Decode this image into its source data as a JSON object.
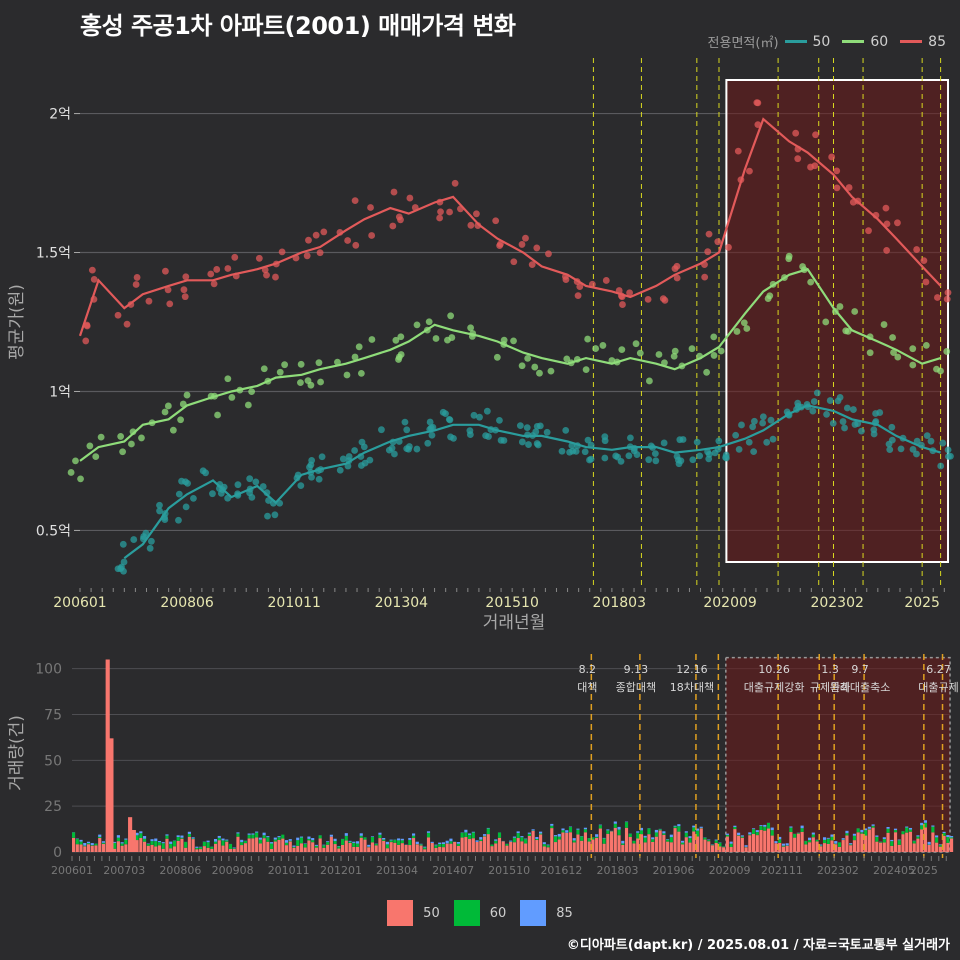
{
  "title": "홍성 주공1차 아파트(2001) 매매가격 변화",
  "legend_title": "전용면적(㎡)",
  "series_colors": {
    "50": "#2a9d9d",
    "60": "#8fdc7a",
    "85": "#e25a5a"
  },
  "bar_colors": {
    "50": "#f8766d",
    "60": "#00ba38",
    "85": "#619cff"
  },
  "credit": "©디아파트(dapt.kr) / 2025.08.01 / 자료=국토교통부 실거래가",
  "chart_data": [
    {
      "type": "line",
      "title": "홍성 주공1차 아파트(2001) 매매가격 변화",
      "xlabel": "거래년월",
      "ylabel": "평균가(원)",
      "x_ticks": [
        "200601",
        "200806",
        "201011",
        "201304",
        "201510",
        "201803",
        "202009",
        "202302",
        "2025"
      ],
      "y_ticks": [
        "0.5억",
        "1억",
        "1.5억",
        "2억"
      ],
      "y_tick_values": [
        0.5,
        1.0,
        1.5,
        2.0
      ],
      "ylim": [
        0.3,
        2.2
      ],
      "xlim": [
        "2006-01",
        "2025-08"
      ],
      "legend_position": "top-right",
      "series": [
        {
          "name": "50",
          "points": [
            [
              "2007-01",
              0.4
            ],
            [
              "2007-06",
              0.45
            ],
            [
              "2008-01",
              0.58
            ],
            [
              "2008-06",
              0.63
            ],
            [
              "2009-01",
              0.68
            ],
            [
              "2009-06",
              0.62
            ],
            [
              "2010-01",
              0.66
            ],
            [
              "2010-06",
              0.6
            ],
            [
              "2011-01",
              0.7
            ],
            [
              "2011-06",
              0.72
            ],
            [
              "2012-01",
              0.74
            ],
            [
              "2012-06",
              0.78
            ],
            [
              "2013-01",
              0.82
            ],
            [
              "2013-06",
              0.84
            ],
            [
              "2014-01",
              0.86
            ],
            [
              "2014-06",
              0.88
            ],
            [
              "2015-01",
              0.88
            ],
            [
              "2015-06",
              0.86
            ],
            [
              "2016-01",
              0.84
            ],
            [
              "2016-06",
              0.84
            ],
            [
              "2017-01",
              0.82
            ],
            [
              "2017-06",
              0.8
            ],
            [
              "2018-01",
              0.79
            ],
            [
              "2018-06",
              0.8
            ],
            [
              "2019-01",
              0.8
            ],
            [
              "2019-06",
              0.78
            ],
            [
              "2020-01",
              0.79
            ],
            [
              "2020-06",
              0.8
            ],
            [
              "2021-01",
              0.83
            ],
            [
              "2021-06",
              0.86
            ],
            [
              "2022-01",
              0.92
            ],
            [
              "2022-06",
              0.95
            ],
            [
              "2023-01",
              0.93
            ],
            [
              "2023-06",
              0.9
            ],
            [
              "2024-01",
              0.88
            ],
            [
              "2024-06",
              0.84
            ],
            [
              "2025-01",
              0.8
            ],
            [
              "2025-06",
              0.78
            ]
          ]
        },
        {
          "name": "60",
          "points": [
            [
              "2006-01",
              0.75
            ],
            [
              "2006-06",
              0.8
            ],
            [
              "2007-01",
              0.82
            ],
            [
              "2007-06",
              0.88
            ],
            [
              "2008-01",
              0.9
            ],
            [
              "2008-06",
              0.95
            ],
            [
              "2009-01",
              0.98
            ],
            [
              "2009-06",
              1.0
            ],
            [
              "2010-01",
              1.02
            ],
            [
              "2010-06",
              1.05
            ],
            [
              "2011-01",
              1.06
            ],
            [
              "2011-06",
              1.08
            ],
            [
              "2012-01",
              1.1
            ],
            [
              "2012-06",
              1.12
            ],
            [
              "2013-01",
              1.15
            ],
            [
              "2013-06",
              1.18
            ],
            [
              "2014-01",
              1.24
            ],
            [
              "2014-06",
              1.22
            ],
            [
              "2015-01",
              1.2
            ],
            [
              "2015-06",
              1.18
            ],
            [
              "2016-01",
              1.14
            ],
            [
              "2016-06",
              1.12
            ],
            [
              "2017-01",
              1.1
            ],
            [
              "2017-06",
              1.12
            ],
            [
              "2018-01",
              1.1
            ],
            [
              "2018-06",
              1.12
            ],
            [
              "2019-01",
              1.1
            ],
            [
              "2019-06",
              1.08
            ],
            [
              "2020-01",
              1.12
            ],
            [
              "2020-06",
              1.16
            ],
            [
              "2021-01",
              1.28
            ],
            [
              "2021-06",
              1.36
            ],
            [
              "2022-01",
              1.42
            ],
            [
              "2022-06",
              1.44
            ],
            [
              "2023-01",
              1.3
            ],
            [
              "2023-06",
              1.22
            ],
            [
              "2024-01",
              1.18
            ],
            [
              "2024-06",
              1.15
            ],
            [
              "2025-01",
              1.1
            ],
            [
              "2025-06",
              1.12
            ]
          ]
        },
        {
          "name": "85",
          "points": [
            [
              "2006-01",
              1.2
            ],
            [
              "2006-06",
              1.4
            ],
            [
              "2007-01",
              1.3
            ],
            [
              "2007-06",
              1.35
            ],
            [
              "2008-01",
              1.38
            ],
            [
              "2008-06",
              1.4
            ],
            [
              "2009-01",
              1.4
            ],
            [
              "2009-06",
              1.42
            ],
            [
              "2010-01",
              1.44
            ],
            [
              "2010-06",
              1.46
            ],
            [
              "2011-01",
              1.5
            ],
            [
              "2011-06",
              1.52
            ],
            [
              "2012-01",
              1.58
            ],
            [
              "2012-06",
              1.62
            ],
            [
              "2013-01",
              1.66
            ],
            [
              "2013-06",
              1.64
            ],
            [
              "2014-01",
              1.68
            ],
            [
              "2014-06",
              1.7
            ],
            [
              "2015-01",
              1.6
            ],
            [
              "2015-06",
              1.55
            ],
            [
              "2016-01",
              1.5
            ],
            [
              "2016-06",
              1.45
            ],
            [
              "2017-01",
              1.42
            ],
            [
              "2017-06",
              1.38
            ],
            [
              "2018-01",
              1.36
            ],
            [
              "2018-06",
              1.34
            ],
            [
              "2019-01",
              1.38
            ],
            [
              "2019-06",
              1.42
            ],
            [
              "2020-01",
              1.46
            ],
            [
              "2020-06",
              1.5
            ],
            [
              "2021-01",
              1.8
            ],
            [
              "2021-06",
              1.98
            ],
            [
              "2022-01",
              1.9
            ],
            [
              "2022-06",
              1.86
            ],
            [
              "2023-01",
              1.78
            ],
            [
              "2023-06",
              1.7
            ],
            [
              "2024-01",
              1.62
            ],
            [
              "2024-06",
              1.55
            ],
            [
              "2025-01",
              1.45
            ],
            [
              "2025-06",
              1.38
            ]
          ]
        }
      ]
    },
    {
      "type": "bar",
      "xlabel": "",
      "ylabel": "거래량(건)",
      "x_ticks": [
        "200601",
        "200703",
        "200806",
        "200908",
        "201011",
        "201201",
        "201304",
        "201407",
        "201510",
        "201612",
        "201803",
        "201906",
        "202009",
        "202111",
        "202302",
        "202405",
        "2025"
      ],
      "y_ticks": [
        "0",
        "25",
        "50",
        "75",
        "100"
      ],
      "y_tick_values": [
        0,
        25,
        50,
        75,
        100
      ],
      "ylim": [
        0,
        108
      ],
      "xlim": [
        "2006-01",
        "2025-08"
      ],
      "notable": [
        {
          "x": "2006-10",
          "series": "50",
          "value": 105
        },
        {
          "x": "2006-11",
          "series": "50",
          "value": 62
        },
        {
          "x": "2007-04",
          "series": "50",
          "value": 19
        },
        {
          "x": "2007-05",
          "series": "50",
          "value": 12
        }
      ],
      "typical_monthly": {
        "50": 5,
        "60": 2,
        "85": 1
      },
      "annotations": [
        {
          "x": "2017-08",
          "label": "8.2 대책"
        },
        {
          "x": "2018-09",
          "label": "9.13 종합대책"
        },
        {
          "x": "2019-12",
          "label": "12.16 18차대책"
        },
        {
          "x": "2020-06",
          "label": ""
        },
        {
          "x": "2021-10",
          "label": "10.26 대출규제강화"
        },
        {
          "x": "2022-09",
          "label": ""
        },
        {
          "x": "2023-01",
          "label": "1.3 규제완화"
        },
        {
          "x": "2023-09",
          "label": "9.7 특례대출축소"
        },
        {
          "x": "2025-01",
          "label": ""
        },
        {
          "x": "2025-06",
          "label": "6.27 대출규제"
        }
      ],
      "shaded_region": [
        "2020-08",
        "2025-08"
      ]
    }
  ]
}
